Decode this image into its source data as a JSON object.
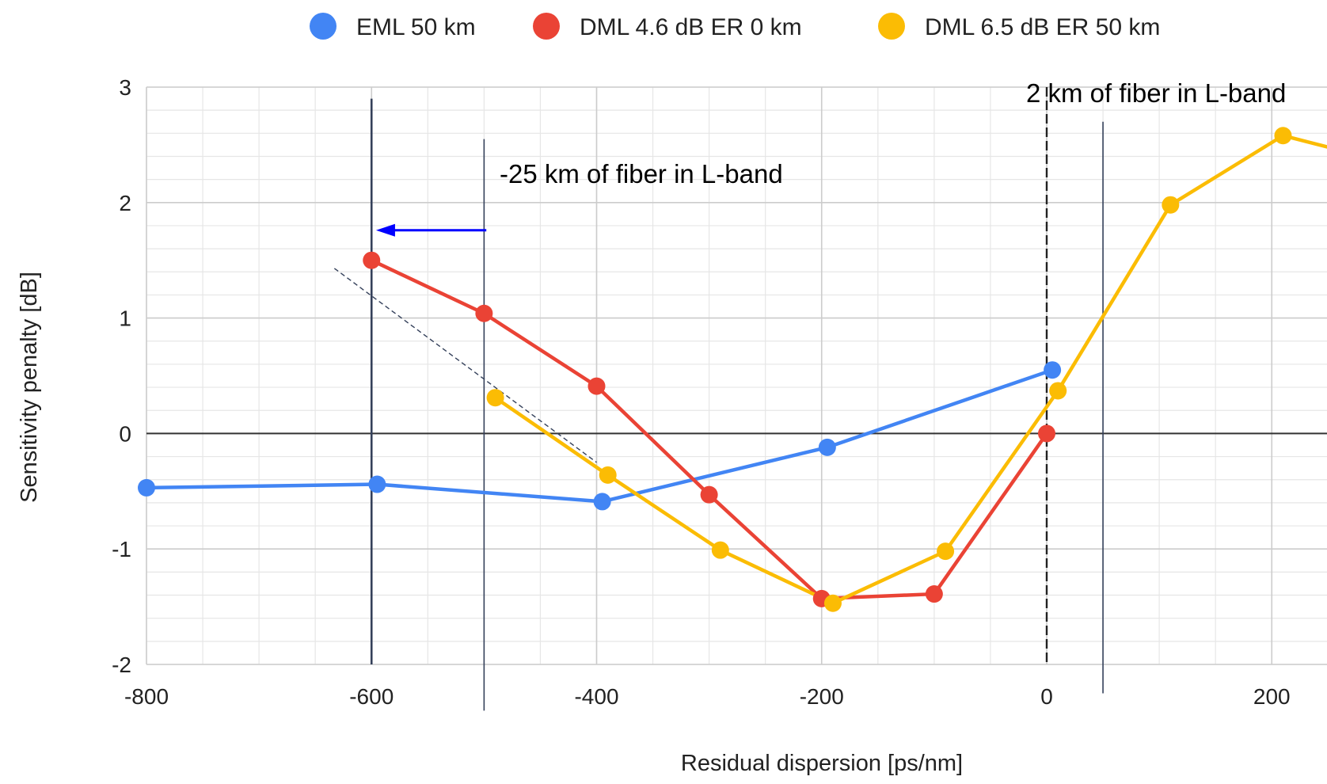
{
  "chart_data": {
    "type": "line",
    "xlabel": "Residual dispersion [ps/nm]",
    "ylabel": "Sensitivity penalty [dB]",
    "xlim": [
      -800,
      250
    ],
    "ylim": [
      -2,
      3
    ],
    "x_ticks": [
      -800,
      -600,
      -400,
      -200,
      0,
      200
    ],
    "x_tick_labels": [
      "-800",
      "-600",
      "-400",
      "-200",
      "0",
      "200"
    ],
    "y_ticks": [
      3,
      2,
      1,
      0,
      -1,
      -2
    ],
    "y_tick_labels": [
      "3",
      "2",
      "1",
      "0",
      "-1",
      "-2"
    ],
    "x_minor_step": 50,
    "y_minor_step": 0.2,
    "grid": true,
    "legend_position": "top",
    "series": [
      {
        "name": "EML 50 km",
        "color": "#4285F4",
        "points": [
          [
            -800,
            -0.47
          ],
          [
            -595,
            -0.44
          ],
          [
            -395,
            -0.59
          ],
          [
            -195,
            -0.12
          ],
          [
            5,
            0.55
          ]
        ]
      },
      {
        "name": "DML 4.6 dB ER 0 km",
        "color": "#EA4335",
        "points": [
          [
            -600,
            1.5
          ],
          [
            -500,
            1.04
          ],
          [
            -400,
            0.41
          ],
          [
            -300,
            -0.53
          ],
          [
            -200,
            -1.43
          ],
          [
            -100,
            -1.39
          ],
          [
            0,
            0.0
          ]
        ]
      },
      {
        "name": "DML 6.5 dB ER 50 km",
        "color": "#FBBC04",
        "points": [
          [
            -490,
            0.31
          ],
          [
            -390,
            -0.36
          ],
          [
            -290,
            -1.01
          ],
          [
            -190,
            -1.47
          ],
          [
            -90,
            -1.02
          ],
          [
            10,
            0.37
          ],
          [
            110,
            1.98
          ],
          [
            210,
            2.58
          ],
          [
            250,
            2.48
          ]
        ]
      }
    ],
    "annotations": [
      {
        "text": "-25 km of fiber in L-band",
        "anchor_x": -490,
        "anchor_y": 2.2
      },
      {
        "text": "2 km of fiber in L-band",
        "anchor_x": -20,
        "anchor_y": 2.9
      }
    ],
    "reference_lines": [
      {
        "x": -600,
        "y_range": [
          -2,
          2.9
        ],
        "style": "solid-dark"
      },
      {
        "x": -500,
        "y_range": [
          -2.4,
          2.55
        ],
        "style": "solid-thin"
      },
      {
        "x": 0,
        "y_range": [
          -2,
          3
        ],
        "style": "dashed"
      },
      {
        "x": 50,
        "y_range": [
          -2.25,
          2.7
        ],
        "style": "solid-thin"
      }
    ],
    "arrow": {
      "from": [
        -498,
        1.76
      ],
      "to": [
        -596,
        1.76
      ],
      "color": "#0000FF"
    },
    "dashed_trend": {
      "from": [
        -633,
        1.43
      ],
      "to": [
        -400,
        -0.25
      ]
    }
  }
}
